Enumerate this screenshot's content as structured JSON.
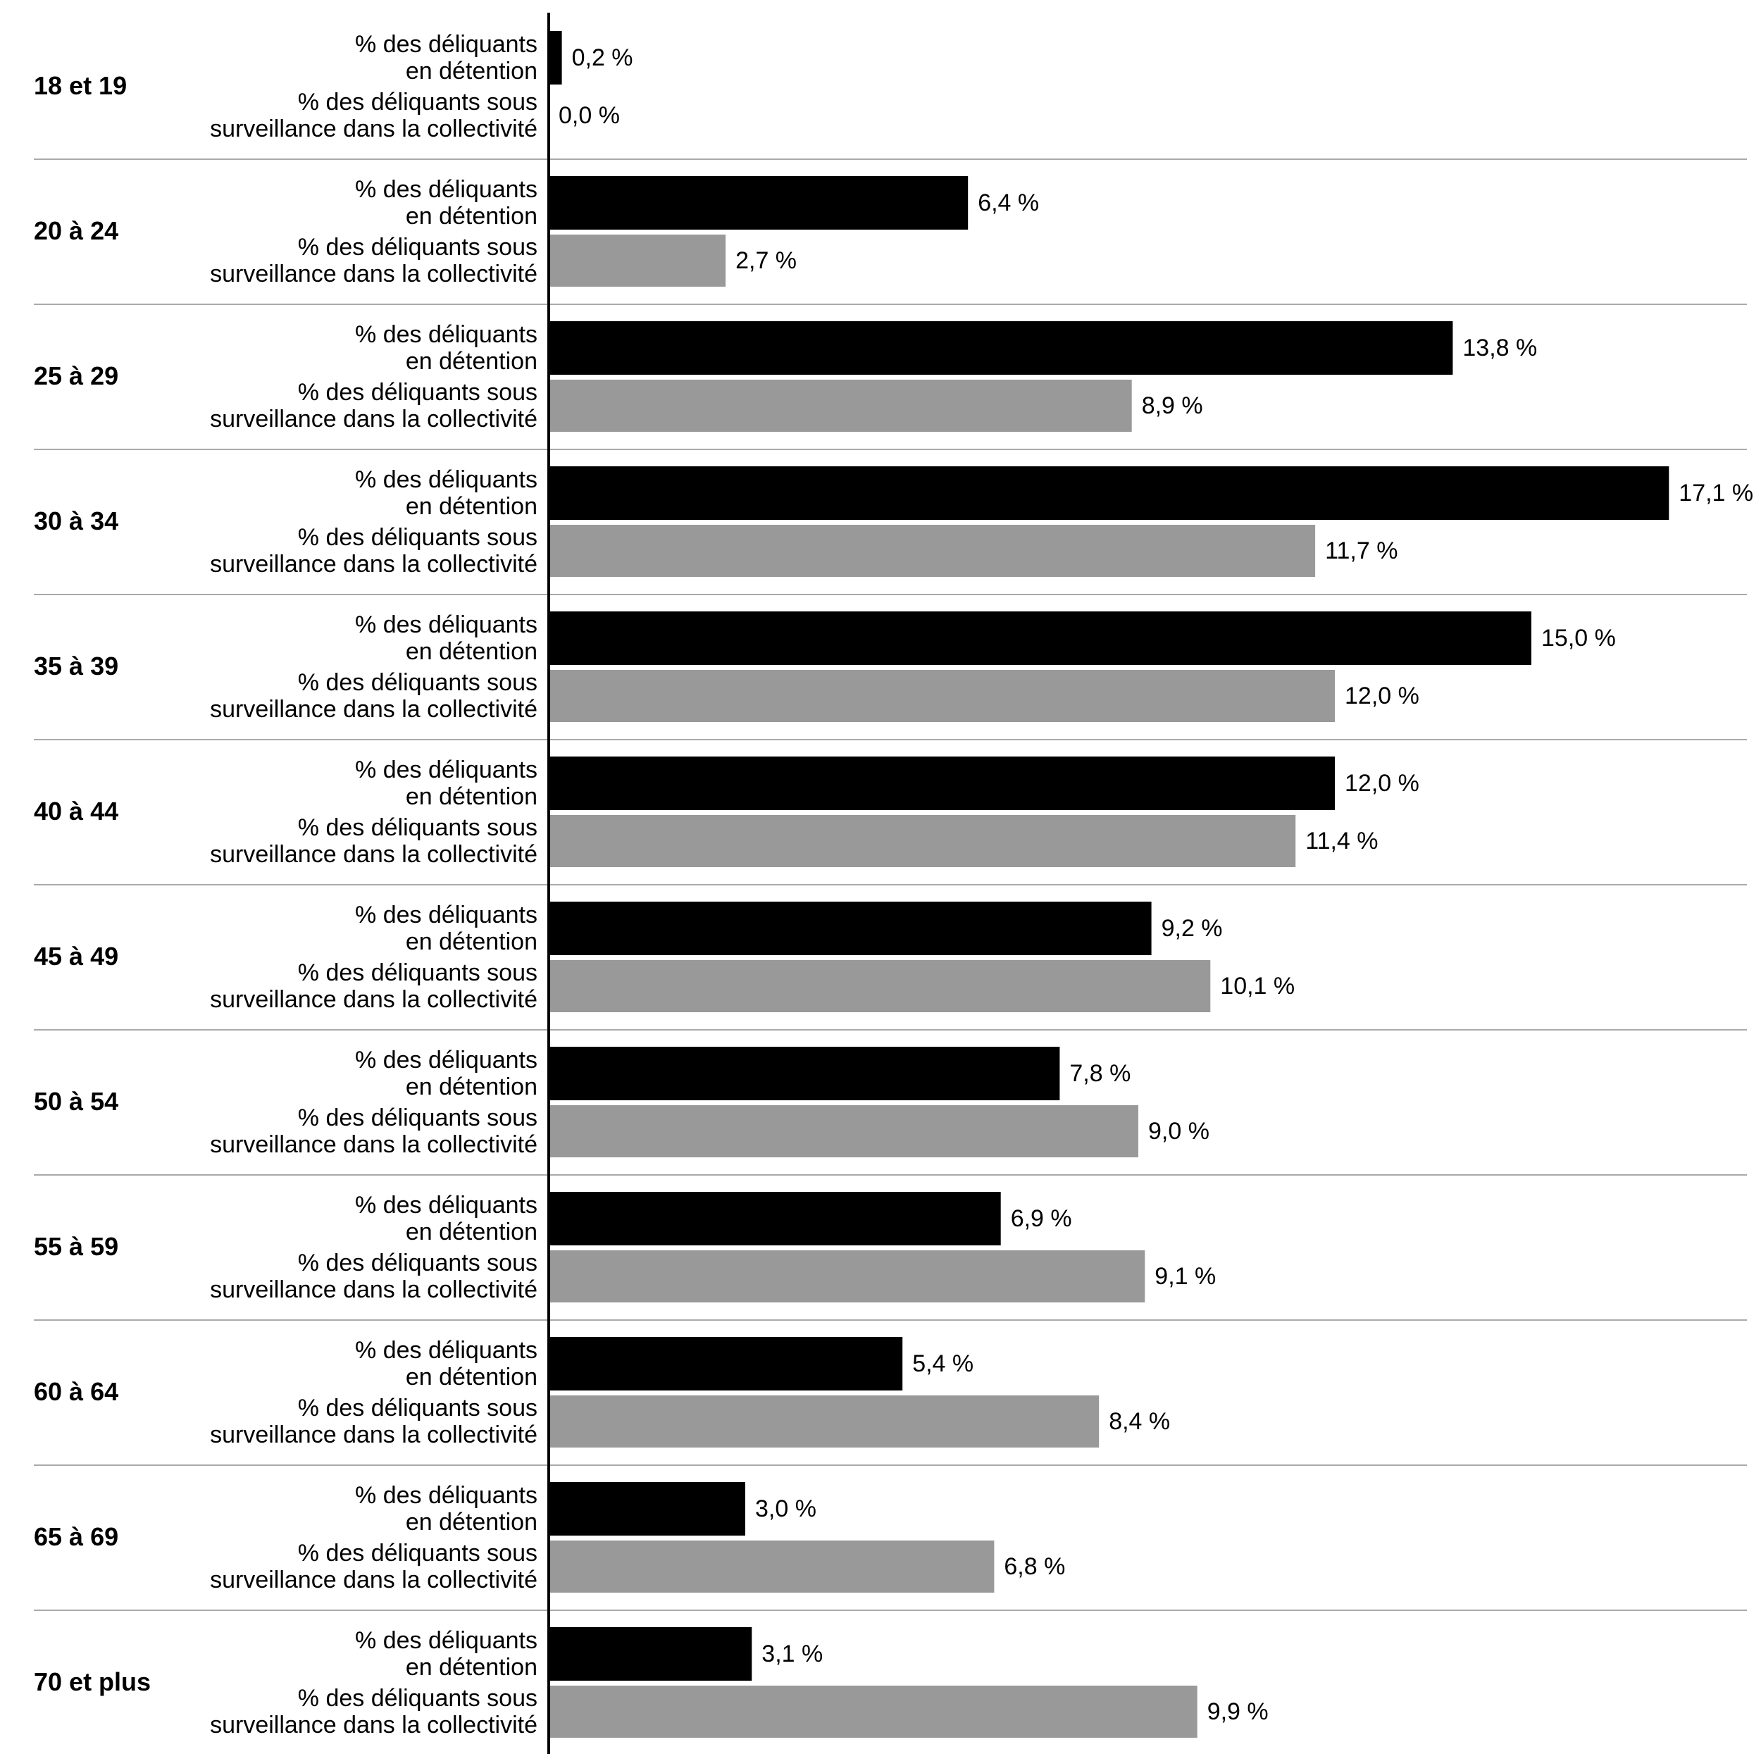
{
  "chart_data": {
    "type": "bar",
    "orientation": "horizontal",
    "categories": [
      "18 et 19",
      "20 à 24",
      "25 à 29",
      "30 à 34",
      "35 à 39",
      "40 à 44",
      "45 à 49",
      "50 à 54",
      "55 à 59",
      "60 à 64",
      "65 à 69",
      "70 et plus"
    ],
    "series": [
      {
        "name": "% des déliquants en détention",
        "color": "#000000",
        "values": [
          0.2,
          6.4,
          13.8,
          17.1,
          15.0,
          12.0,
          9.2,
          7.8,
          6.9,
          5.4,
          3.0,
          3.1
        ],
        "value_labels": [
          "0,2 %",
          "6,4 %",
          "13,8 %",
          "17,1 %",
          "15,0 %",
          "12,0 %",
          "9,2 %",
          "7,8 %",
          "6,9 %",
          "5,4 %",
          "3,0 %",
          "3,1 %"
        ]
      },
      {
        "name": "% des déliquants sous surveillance dans la collectivité",
        "color": "#999999",
        "values": [
          0.0,
          2.7,
          8.9,
          11.7,
          12.0,
          11.4,
          10.1,
          9.0,
          9.1,
          8.4,
          6.8,
          9.9
        ],
        "value_labels": [
          "0,0 %",
          "2,7 %",
          "8,9 %",
          "11,7 %",
          "12,0 %",
          "11,4 %",
          "10,1 %",
          "9,0 %",
          "9,1 %",
          "8,4 %",
          "6,8 %",
          "9,9 %"
        ]
      }
    ]
  }
}
